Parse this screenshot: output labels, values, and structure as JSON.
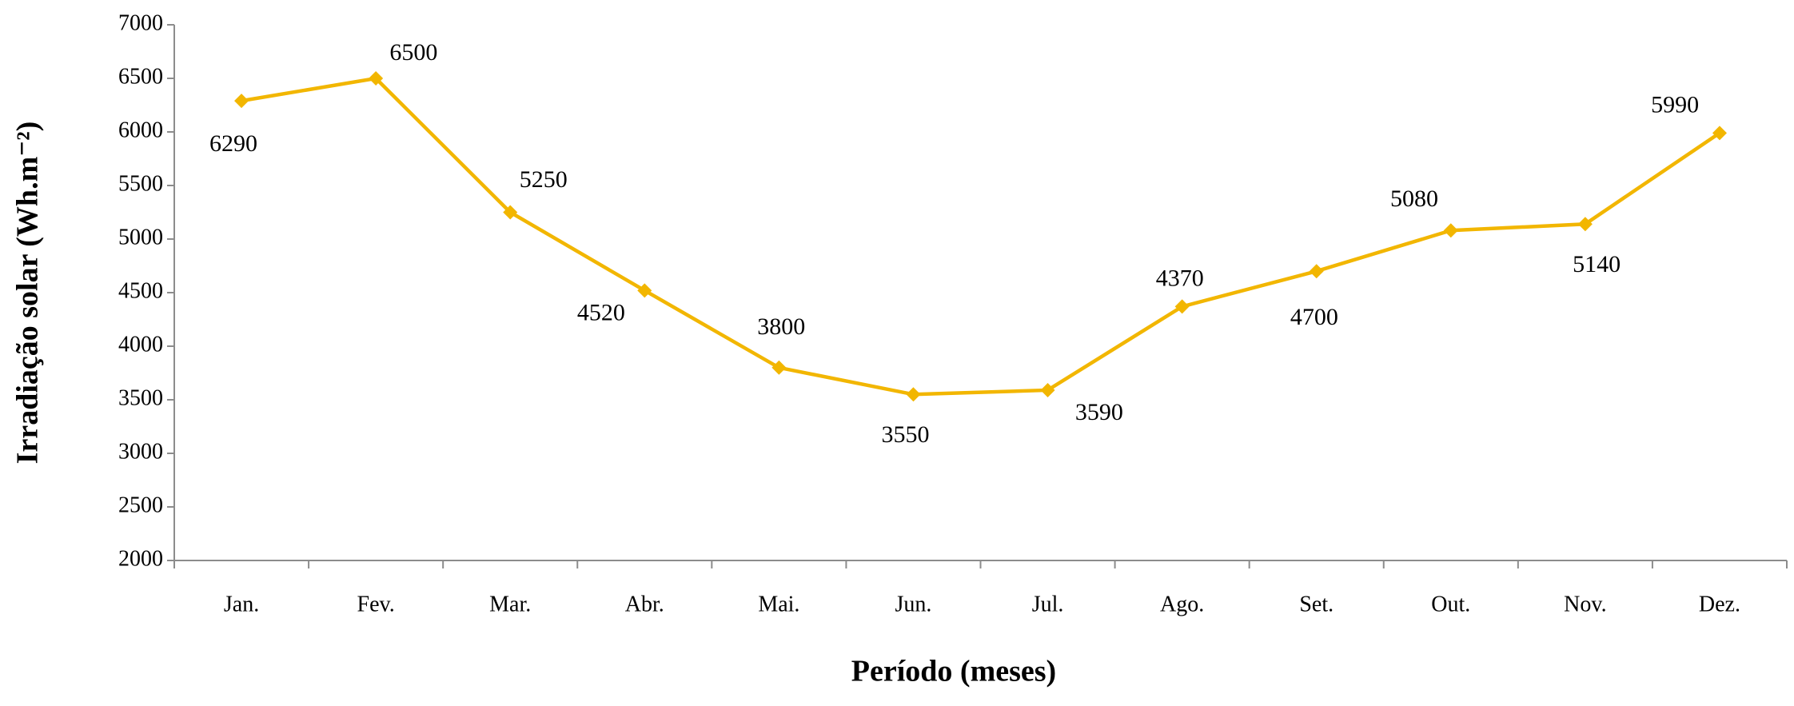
{
  "chart_data": {
    "type": "line",
    "ylabel": "Irradiação solar (Wh.m⁻²)",
    "xlabel": "Período (meses)",
    "categories": [
      "Jan.",
      "Fev.",
      "Mar.",
      "Abr.",
      "Mai.",
      "Jun.",
      "Jul.",
      "Ago.",
      "Set.",
      "Out.",
      "Nov.",
      "Dez."
    ],
    "values": [
      6290,
      6500,
      5250,
      4520,
      3800,
      3550,
      3590,
      4370,
      4700,
      5080,
      5140,
      5990
    ],
    "color": "#f2b600",
    "ylim": [
      2000,
      7000
    ],
    "yticks": [
      2000,
      2500,
      3000,
      3500,
      4000,
      4500,
      5000,
      5500,
      6000,
      6500,
      7000
    ],
    "grid": false
  }
}
